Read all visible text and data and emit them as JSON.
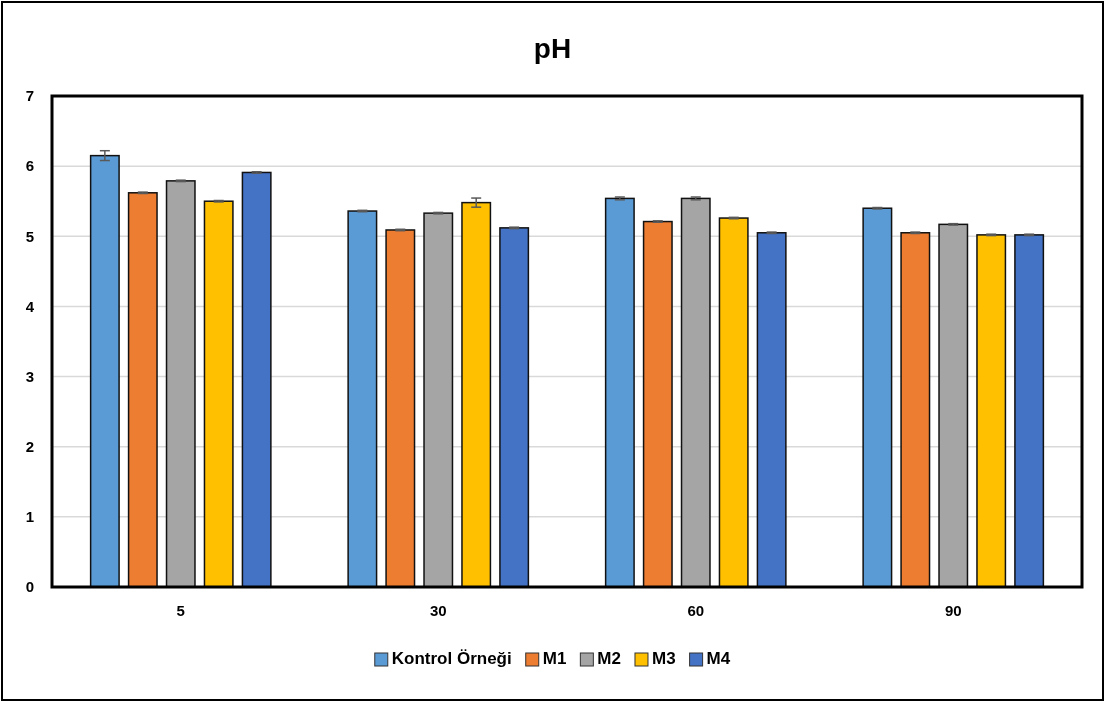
{
  "chart_data": {
    "type": "bar",
    "title": "pH",
    "categories": [
      "5",
      "30",
      "60",
      "90"
    ],
    "series": [
      {
        "name": "Kontrol Örneği",
        "color": "#5b9bd5",
        "values": [
          6.15,
          5.36,
          5.54,
          5.4
        ],
        "errors": [
          0.07,
          0.01,
          0.02,
          0.01
        ]
      },
      {
        "name": "M1",
        "color": "#ed7d31",
        "values": [
          5.62,
          5.09,
          5.21,
          5.05
        ],
        "errors": [
          0.01,
          0.01,
          0.01,
          0.01
        ]
      },
      {
        "name": "M2",
        "color": "#a5a5a5",
        "values": [
          5.79,
          5.33,
          5.54,
          5.17
        ],
        "errors": [
          0.01,
          0.01,
          0.02,
          0.01
        ]
      },
      {
        "name": "M3",
        "color": "#ffc000",
        "values": [
          5.5,
          5.48,
          5.26,
          5.02
        ],
        "errors": [
          0.01,
          0.065,
          0.01,
          0.01
        ]
      },
      {
        "name": "M4",
        "color": "#4472c4",
        "values": [
          5.91,
          5.12,
          5.05,
          5.02
        ],
        "errors": [
          0.01,
          0.01,
          0.01,
          0.01
        ]
      }
    ],
    "ylim": [
      0,
      7
    ],
    "yticks": [
      0,
      1,
      2,
      3,
      4,
      5,
      6,
      7
    ],
    "grid": "y",
    "legend": "bottom"
  }
}
